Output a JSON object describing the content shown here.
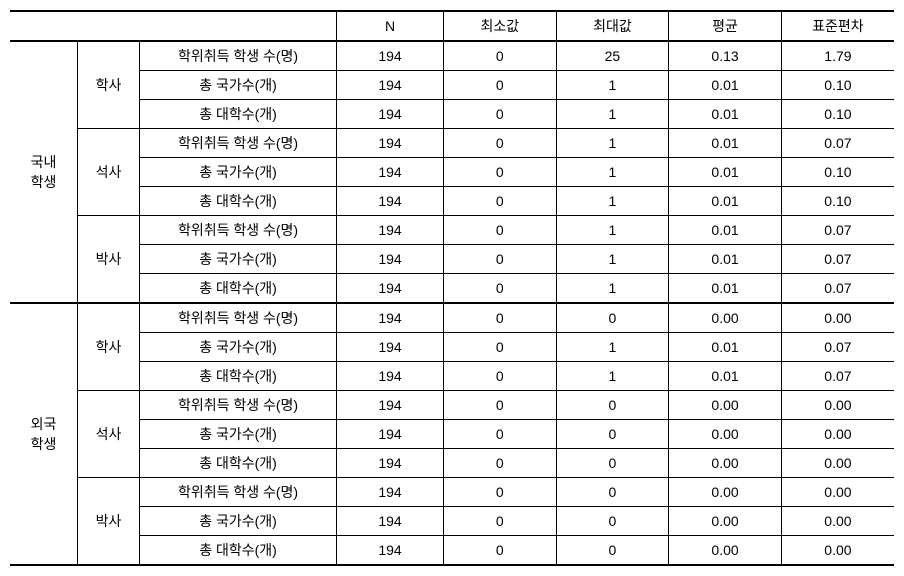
{
  "headers": {
    "n": "N",
    "min": "최소값",
    "max": "최대값",
    "mean": "평균",
    "std": "표준편차"
  },
  "groups": [
    {
      "label": "국내\n학생",
      "degrees": [
        {
          "label": "학사",
          "rows": [
            {
              "metric": "학위취득 학생 수(명)",
              "n": "194",
              "min": "0",
              "max": "25",
              "mean": "0.13",
              "std": "1.79"
            },
            {
              "metric": "총 국가수(개)",
              "n": "194",
              "min": "0",
              "max": "1",
              "mean": "0.01",
              "std": "0.10"
            },
            {
              "metric": "총 대학수(개)",
              "n": "194",
              "min": "0",
              "max": "1",
              "mean": "0.01",
              "std": "0.10"
            }
          ]
        },
        {
          "label": "석사",
          "rows": [
            {
              "metric": "학위취득 학생 수(명)",
              "n": "194",
              "min": "0",
              "max": "1",
              "mean": "0.01",
              "std": "0.07"
            },
            {
              "metric": "총 국가수(개)",
              "n": "194",
              "min": "0",
              "max": "1",
              "mean": "0.01",
              "std": "0.10"
            },
            {
              "metric": "총 대학수(개)",
              "n": "194",
              "min": "0",
              "max": "1",
              "mean": "0.01",
              "std": "0.10"
            }
          ]
        },
        {
          "label": "박사",
          "rows": [
            {
              "metric": "학위취득 학생 수(명)",
              "n": "194",
              "min": "0",
              "max": "1",
              "mean": "0.01",
              "std": "0.07"
            },
            {
              "metric": "총 국가수(개)",
              "n": "194",
              "min": "0",
              "max": "1",
              "mean": "0.01",
              "std": "0.07"
            },
            {
              "metric": "총 대학수(개)",
              "n": "194",
              "min": "0",
              "max": "1",
              "mean": "0.01",
              "std": "0.07"
            }
          ]
        }
      ]
    },
    {
      "label": "외국\n학생",
      "degrees": [
        {
          "label": "학사",
          "rows": [
            {
              "metric": "학위취득 학생 수(명)",
              "n": "194",
              "min": "0",
              "max": "0",
              "mean": "0.00",
              "std": "0.00"
            },
            {
              "metric": "총 국가수(개)",
              "n": "194",
              "min": "0",
              "max": "1",
              "mean": "0.01",
              "std": "0.07"
            },
            {
              "metric": "총 대학수(개)",
              "n": "194",
              "min": "0",
              "max": "1",
              "mean": "0.01",
              "std": "0.07"
            }
          ]
        },
        {
          "label": "석사",
          "rows": [
            {
              "metric": "학위취득 학생 수(명)",
              "n": "194",
              "min": "0",
              "max": "0",
              "mean": "0.00",
              "std": "0.00"
            },
            {
              "metric": "총 국가수(개)",
              "n": "194",
              "min": "0",
              "max": "0",
              "mean": "0.00",
              "std": "0.00"
            },
            {
              "metric": "총 대학수(개)",
              "n": "194",
              "min": "0",
              "max": "0",
              "mean": "0.00",
              "std": "0.00"
            }
          ]
        },
        {
          "label": "박사",
          "rows": [
            {
              "metric": "학위취득 학생 수(명)",
              "n": "194",
              "min": "0",
              "max": "0",
              "mean": "0.00",
              "std": "0.00"
            },
            {
              "metric": "총 국가수(개)",
              "n": "194",
              "min": "0",
              "max": "0",
              "mean": "0.00",
              "std": "0.00"
            },
            {
              "metric": "총 대학수(개)",
              "n": "194",
              "min": "0",
              "max": "0",
              "mean": "0.00",
              "std": "0.00"
            }
          ]
        }
      ]
    }
  ]
}
